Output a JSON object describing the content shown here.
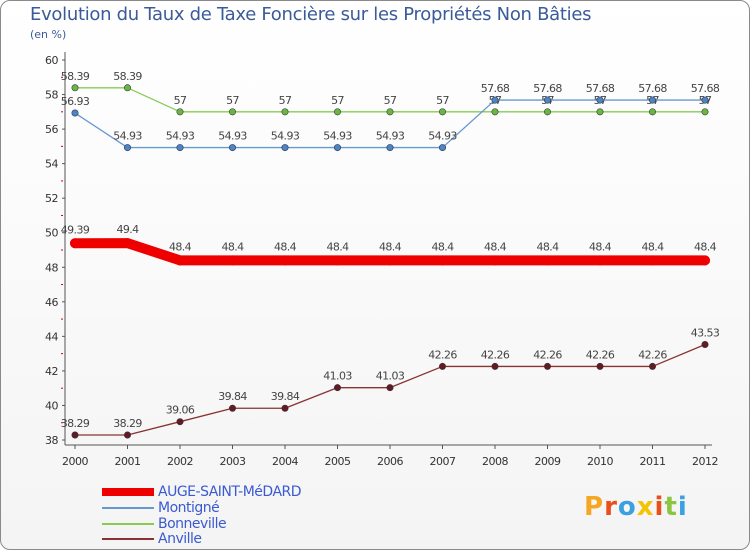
{
  "chart_data": {
    "type": "line",
    "title": "Evolution du Taux de Taxe Foncière sur les Propriétés Non Bâties",
    "ylabel": "(en %)",
    "xlabel": "",
    "ylim": [
      38,
      60
    ],
    "yticks": [
      38,
      40,
      42,
      44,
      46,
      48,
      50,
      52,
      54,
      56,
      58,
      60
    ],
    "categories": [
      "2000",
      "2001",
      "2002",
      "2003",
      "2004",
      "2005",
      "2006",
      "2007",
      "2008",
      "2009",
      "2010",
      "2011",
      "2012"
    ],
    "series": [
      {
        "name": "Bonneville",
        "color": "#88cc55",
        "marker": "#6ab83a",
        "values": [
          58.39,
          58.39,
          57,
          57,
          57,
          57,
          57,
          57,
          57,
          57,
          57,
          57,
          57
        ],
        "labels": [
          "58.39",
          "58.39",
          "57",
          "57",
          "57",
          "57",
          "57",
          "57",
          "57",
          "57",
          "57",
          "57",
          "57"
        ]
      },
      {
        "name": "Montigné",
        "color": "#6699cc",
        "marker": "#4a86c2",
        "values": [
          56.93,
          54.93,
          54.93,
          54.93,
          54.93,
          54.93,
          54.93,
          54.93,
          57.68,
          57.68,
          57.68,
          57.68,
          57.68
        ],
        "labels": [
          "56.93",
          "54.93",
          "54.93",
          "54.93",
          "54.93",
          "54.93",
          "54.93",
          "54.93",
          "57.68",
          "57.68",
          "57.68",
          "57.68",
          "57.68"
        ]
      },
      {
        "name": "AUGE-SAINT-MéDARD",
        "color": "#ee0000",
        "marker": "#ee0000",
        "values": [
          49.39,
          49.4,
          48.4,
          48.4,
          48.4,
          48.4,
          48.4,
          48.4,
          48.4,
          48.4,
          48.4,
          48.4,
          48.4
        ],
        "labels": [
          "49.39",
          "49.4",
          "48.4",
          "48.4",
          "48.4",
          "48.4",
          "48.4",
          "48.4",
          "48.4",
          "48.4",
          "48.4",
          "48.4",
          "48.4"
        ]
      },
      {
        "name": "Anville",
        "color": "#883333",
        "marker": "#661a1a",
        "values": [
          38.29,
          38.29,
          39.06,
          39.84,
          39.84,
          41.03,
          41.03,
          42.26,
          42.26,
          42.26,
          42.26,
          42.26,
          43.53
        ],
        "labels": [
          "38.29",
          "38.29",
          "39.06",
          "39.84",
          "39.84",
          "41.03",
          "41.03",
          "42.26",
          "42.26",
          "42.26",
          "42.26",
          "42.26",
          "43.53"
        ]
      }
    ],
    "legend": [
      "AUGE-SAINT-MéDARD",
      "Montigné",
      "Bonneville",
      "Anville"
    ],
    "grid": false
  },
  "logo": {
    "text": "Proxiti"
  }
}
